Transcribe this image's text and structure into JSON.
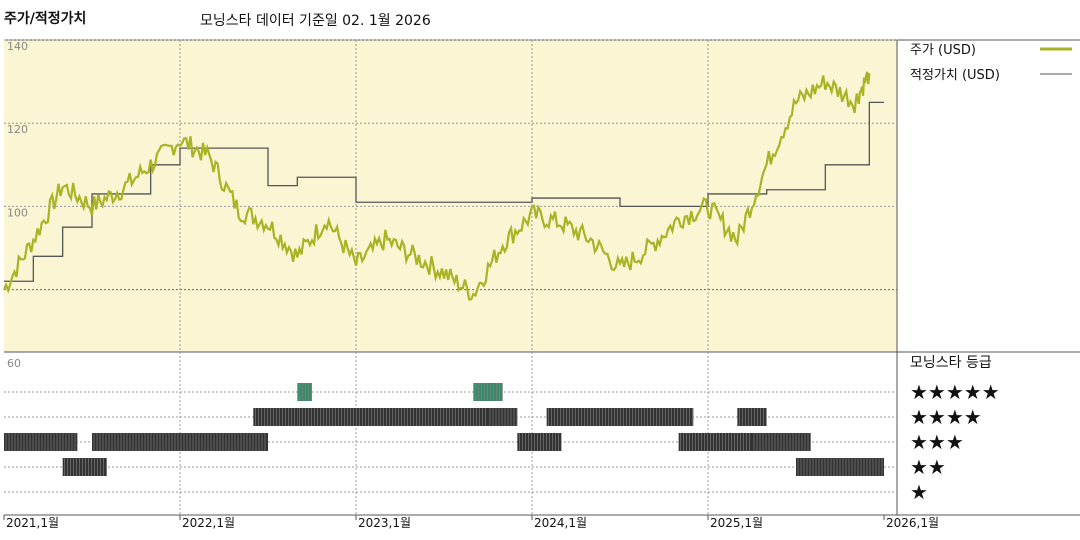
{
  "header": {
    "title": "주가/적정가치",
    "subtitle": "모닝스타 데이터 기준일 02. 1월 2026"
  },
  "chart_data": [
    {
      "type": "line",
      "title": "주가/적정가치",
      "x": [
        "2021-01",
        "2021-03",
        "2021-05",
        "2021-07",
        "2021-09",
        "2021-11",
        "2022-01",
        "2022-03",
        "2022-05",
        "2022-07",
        "2022-09",
        "2022-11",
        "2023-01",
        "2023-03",
        "2023-05",
        "2023-07",
        "2023-09",
        "2023-11",
        "2024-01",
        "2024-03",
        "2024-05",
        "2024-07",
        "2024-09",
        "2024-11",
        "2025-01",
        "2025-03",
        "2025-05",
        "2025-07",
        "2025-09",
        "2025-11",
        "2025-12"
      ],
      "series": [
        {
          "name": "주가 (USD)",
          "color": "#a9b424",
          "values": [
            80,
            92,
            105,
            100,
            104,
            110,
            116,
            112,
            99,
            96,
            88,
            97,
            86,
            92,
            88,
            84,
            79,
            91,
            98,
            96,
            92,
            85,
            90,
            97,
            100,
            92,
            110,
            125,
            130,
            125,
            132
          ]
        },
        {
          "name": "적정가치 (USD)",
          "color": "#555555",
          "step": true,
          "values": [
            82,
            88,
            95,
            103,
            103,
            110,
            114,
            114,
            114,
            105,
            107,
            107,
            101,
            101,
            101,
            101,
            101,
            101,
            102,
            102,
            102,
            100,
            100,
            100,
            103,
            103,
            104,
            104,
            110,
            110,
            125
          ]
        }
      ],
      "y_ticks": [
        100,
        120,
        140
      ],
      "ylim": [
        65,
        140
      ],
      "x_tick_labels": [
        "2021,1월",
        "2022,1월",
        "2023,1월",
        "2024,1월",
        "2025,1월",
        "2026,1월"
      ],
      "background": "#faf5d3",
      "grid": true,
      "legend_position": "top-right"
    },
    {
      "type": "bar",
      "title": "모닝스타 등급",
      "y_tick_label": "60",
      "levels": [
        "★★★★★",
        "★★★★",
        "★★★",
        "★★",
        "★"
      ],
      "ratings": [
        {
          "start": "2021-01",
          "end": "2021-05",
          "stars": 3,
          "color": "#333333"
        },
        {
          "start": "2021-05",
          "end": "2021-07",
          "stars": 2,
          "color": "#333333"
        },
        {
          "start": "2021-07",
          "end": "2022-06",
          "stars": 3,
          "color": "#333333"
        },
        {
          "start": "2022-06",
          "end": "2022-09",
          "stars": 4,
          "color": "#333333"
        },
        {
          "start": "2022-09",
          "end": "2022-09",
          "stars": 5,
          "color": "#3a8a6a"
        },
        {
          "start": "2022-09",
          "end": "2023-09",
          "stars": 4,
          "color": "#333333"
        },
        {
          "start": "2023-09",
          "end": "2023-10",
          "stars": 5,
          "color": "#3a8a6a"
        },
        {
          "start": "2023-10",
          "end": "2023-11",
          "stars": 4,
          "color": "#333333"
        },
        {
          "start": "2023-12",
          "end": "2024-02",
          "stars": 3,
          "color": "#333333"
        },
        {
          "start": "2024-02",
          "end": "2024-11",
          "stars": 4,
          "color": "#333333"
        },
        {
          "start": "2024-11",
          "end": "2025-03",
          "stars": 3,
          "color": "#333333"
        },
        {
          "start": "2025-03",
          "end": "2025-04",
          "stars": 4,
          "color": "#333333"
        },
        {
          "start": "2025-04",
          "end": "2025-07",
          "stars": 3,
          "color": "#333333"
        },
        {
          "start": "2025-07",
          "end": "2025-12",
          "stars": 2,
          "color": "#333333"
        }
      ]
    }
  ]
}
